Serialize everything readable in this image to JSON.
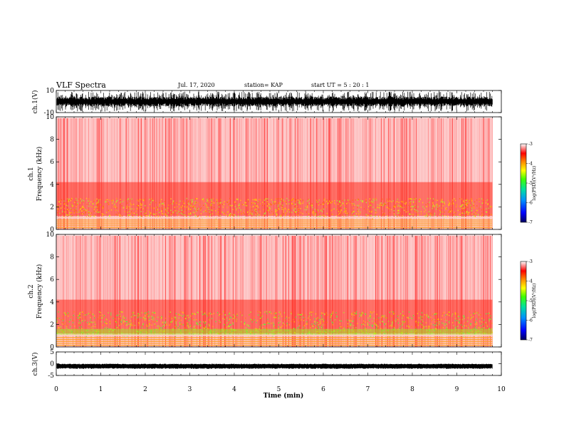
{
  "header": {
    "title": "VLF Spectra",
    "date": "Jul. 17, 2020",
    "station": "station= KAP",
    "start": "start UT = 5 : 20 : 1"
  },
  "chart_data": [
    {
      "type": "line",
      "id": "ch1-waveform",
      "ylabel": "ch.1(V)",
      "ylim": [
        -10,
        10
      ],
      "yticks": [
        "10",
        "-10"
      ],
      "xlim": [
        0,
        10
      ],
      "data_extent_min": 9.8,
      "description_of_trace": "dense black oscillating trace filling most of the band"
    },
    {
      "type": "heatmap",
      "id": "ch1-spectrogram",
      "ylabel_line1": "ch.1",
      "ylabel_line2": "Frequency (kHz)",
      "ylim": [
        0,
        10
      ],
      "yticks": [
        "0",
        "2",
        "4",
        "6",
        "8",
        "10"
      ],
      "xlim": [
        0,
        10
      ],
      "data_extent_min": 9.8,
      "colorbar": {
        "label": "log(PSD)(V²/Hz)",
        "range": [
          -7,
          -3
        ],
        "ticks": [
          "-3",
          "-4",
          "-5",
          "-6",
          "-7"
        ]
      }
    },
    {
      "type": "heatmap",
      "id": "ch2-spectrogram",
      "ylabel_line1": "ch.2",
      "ylabel_line2": "Frequency (kHz)",
      "ylim": [
        0,
        10
      ],
      "yticks": [
        "0",
        "2",
        "4",
        "6",
        "8",
        "10"
      ],
      "xlim": [
        0,
        10
      ],
      "data_extent_min": 9.8,
      "colorbar": {
        "label": "log(PSD)(V²/Hz)",
        "range": [
          -7,
          -3
        ],
        "ticks": [
          "-3",
          "-4",
          "-5",
          "-6",
          "-7"
        ]
      }
    },
    {
      "type": "line",
      "id": "ch3-waveform",
      "ylabel": "ch.3(V)",
      "ylim": [
        -5,
        5
      ],
      "yticks": [
        "5",
        "0",
        "-5"
      ],
      "xlim": [
        0,
        10
      ],
      "data_extent_min": 9.8
    }
  ],
  "xaxis": {
    "label": "Time (min)",
    "ticks": [
      "0",
      "1",
      "2",
      "3",
      "4",
      "5",
      "6",
      "7",
      "8",
      "9",
      "10"
    ]
  },
  "colors": {
    "colormap": [
      "#000080",
      "#0000ff",
      "#00a0ff",
      "#00ff80",
      "#80ff00",
      "#ffff00",
      "#ff8000",
      "#ff0000",
      "#ffffff"
    ]
  }
}
